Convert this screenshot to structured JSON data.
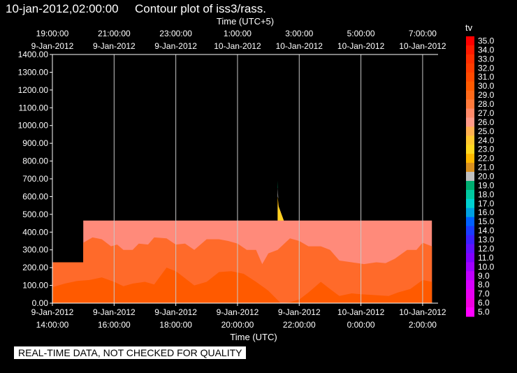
{
  "header": {
    "timestamp": "10-jan-2012,02:00:00",
    "title": "Contour plot of iss3/rass."
  },
  "notice": "REAL-TIME DATA, NOT CHECKED FOR QUALITY",
  "chart_data": {
    "type": "area",
    "title": "Contour plot of iss3/rass.",
    "xlabel": "Time (UTC)",
    "top_xlabel": "Time (UTC+5)",
    "ylabel": "",
    "ylim": [
      0,
      1400
    ],
    "xlim_hours_utc": [
      14,
      26.5
    ],
    "yticks": [
      "0.00",
      "100.00",
      "200.00",
      "300.00",
      "400.00",
      "500.00",
      "600.00",
      "700.00",
      "800.00",
      "900.00",
      "1000.00",
      "1100.00",
      "1200.00",
      "1300.00",
      "1400.00"
    ],
    "bottom_ticks": [
      {
        "date": "9-Jan-2012",
        "time": "14:00:00"
      },
      {
        "date": "9-Jan-2012",
        "time": "16:00:00"
      },
      {
        "date": "9-Jan-2012",
        "time": "18:00:00"
      },
      {
        "date": "9-Jan-2012",
        "time": "20:00:00"
      },
      {
        "date": "9-Jan-2012",
        "time": "22:00:00"
      },
      {
        "date": "10-Jan-2012",
        "time": "0:00:00"
      },
      {
        "date": "10-Jan-2012",
        "time": "2:00:00"
      }
    ],
    "top_ticks": [
      {
        "time": "19:00:00",
        "date": "9-Jan-2012"
      },
      {
        "time": "21:00:00",
        "date": "9-Jan-2012"
      },
      {
        "time": "23:00:00",
        "date": "9-Jan-2012"
      },
      {
        "time": "1:00:00",
        "date": "10-Jan-2012"
      },
      {
        "time": "3:00:00",
        "date": "10-Jan-2012"
      },
      {
        "time": "5:00:00",
        "date": "10-Jan-2012"
      },
      {
        "time": "7:00:00",
        "date": "10-Jan-2012"
      }
    ],
    "grid": true,
    "colorbar": {
      "label": "tv",
      "values": [
        "35.0",
        "34.0",
        "33.0",
        "32.0",
        "31.0",
        "30.0",
        "29.0",
        "28.0",
        "27.0",
        "26.0",
        "25.0",
        "24.0",
        "23.0",
        "22.0",
        "21.0",
        "20.0",
        "19.0",
        "18.0",
        "17.0",
        "16.0",
        "15.0",
        "14.0",
        "13.0",
        "12.0",
        "11.0",
        "10.0",
        "9.0",
        "8.0",
        "7.0",
        "6.0",
        "5.0"
      ],
      "colors": [
        "#ff0000",
        "#ff1a00",
        "#ff2e00",
        "#ff3c00",
        "#ff4a00",
        "#ff5a00",
        "#ff6a1a",
        "#ff7a3c",
        "#ff8a6a",
        "#ff9a88",
        "#ffb050",
        "#ffc830",
        "#ffd820",
        "#ffb800",
        "#d99020",
        "#c0c0c0",
        "#00ad70",
        "#00c8a0",
        "#00d0d0",
        "#00a0e0",
        "#0060ff",
        "#1a3cff",
        "#3a20ff",
        "#6010ff",
        "#8000ff",
        "#a000ff",
        "#c000ff",
        "#d800ff",
        "#e800f0",
        "#f000e0",
        "#ff00ff"
      ]
    },
    "contour_layers": [
      {
        "level": "27.0",
        "color": "#ff8a7a",
        "points": [
          [
            14,
            230
          ],
          [
            15,
            230
          ],
          [
            15,
            465
          ],
          [
            21.3,
            465
          ],
          [
            21.3,
            560
          ],
          [
            21.5,
            465
          ],
          [
            26.3,
            465
          ],
          [
            26.3,
            0
          ],
          [
            14,
            0
          ]
        ]
      },
      {
        "level": "28.0",
        "color": "#ff6a2a",
        "points": [
          [
            14,
            230
          ],
          [
            15,
            230
          ],
          [
            15,
            340
          ],
          [
            15.3,
            370
          ],
          [
            15.6,
            360
          ],
          [
            15.9,
            320
          ],
          [
            16.1,
            330
          ],
          [
            16.3,
            300
          ],
          [
            16.6,
            300
          ],
          [
            16.8,
            335
          ],
          [
            17.1,
            330
          ],
          [
            17.3,
            370
          ],
          [
            17.7,
            365
          ],
          [
            18,
            330
          ],
          [
            18.3,
            335
          ],
          [
            18.6,
            300
          ],
          [
            19,
            360
          ],
          [
            19.4,
            360
          ],
          [
            19.7,
            350
          ],
          [
            20.0,
            335
          ],
          [
            20.3,
            300
          ],
          [
            20.6,
            300
          ],
          [
            20.8,
            220
          ],
          [
            21.0,
            280
          ],
          [
            21.3,
            300
          ],
          [
            21.7,
            365
          ],
          [
            22.0,
            350
          ],
          [
            22.3,
            320
          ],
          [
            22.7,
            320
          ],
          [
            23.0,
            300
          ],
          [
            23.3,
            240
          ],
          [
            23.7,
            230
          ],
          [
            24.1,
            220
          ],
          [
            24.5,
            230
          ],
          [
            24.8,
            225
          ],
          [
            25.1,
            250
          ],
          [
            25.5,
            300
          ],
          [
            25.8,
            300
          ],
          [
            26.0,
            340
          ],
          [
            26.3,
            320
          ],
          [
            26.3,
            0
          ],
          [
            14,
            0
          ]
        ]
      },
      {
        "level": "29.0",
        "color": "#ff5a00",
        "points": [
          [
            14,
            90
          ],
          [
            14.4,
            110
          ],
          [
            14.8,
            125
          ],
          [
            15.2,
            130
          ],
          [
            15.6,
            145
          ],
          [
            16.0,
            120
          ],
          [
            16.3,
            95
          ],
          [
            16.6,
            110
          ],
          [
            17.0,
            120
          ],
          [
            17.3,
            105
          ],
          [
            17.7,
            200
          ],
          [
            18.0,
            180
          ],
          [
            18.3,
            140
          ],
          [
            18.6,
            100
          ],
          [
            19.0,
            120
          ],
          [
            19.4,
            175
          ],
          [
            19.8,
            180
          ],
          [
            20.2,
            165
          ],
          [
            20.6,
            120
          ],
          [
            21.0,
            70
          ],
          [
            21.4,
            0
          ],
          [
            21.7,
            5
          ],
          [
            22.0,
            20
          ],
          [
            22.3,
            60
          ],
          [
            22.7,
            120
          ],
          [
            23.0,
            80
          ],
          [
            23.3,
            40
          ],
          [
            23.7,
            55
          ],
          [
            24.0,
            50
          ],
          [
            24.5,
            45
          ],
          [
            24.9,
            40
          ],
          [
            25.2,
            60
          ],
          [
            25.6,
            80
          ],
          [
            26.0,
            130
          ],
          [
            26.3,
            120
          ],
          [
            26.3,
            0
          ],
          [
            14,
            0
          ]
        ]
      },
      {
        "level": "24.0",
        "color": "#ffd020",
        "points": [
          [
            21.3,
            465
          ],
          [
            21.5,
            465
          ],
          [
            21.3,
            560
          ]
        ]
      },
      {
        "level": "22.0",
        "color": "#ffb800",
        "points": [
          [
            21.3,
            560
          ],
          [
            21.34,
            540
          ],
          [
            21.3,
            600
          ]
        ]
      },
      {
        "level": "20.0",
        "color": "#c0c0c0",
        "points": [
          [
            21.3,
            600
          ],
          [
            21.32,
            590
          ],
          [
            21.3,
            650
          ]
        ]
      },
      {
        "level": "19.0",
        "color": "#00ad70",
        "points": [
          [
            21.3,
            650
          ],
          [
            21.31,
            645
          ],
          [
            21.3,
            690
          ]
        ]
      }
    ]
  }
}
